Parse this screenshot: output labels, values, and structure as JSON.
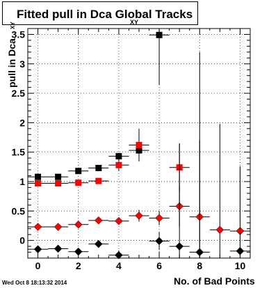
{
  "title": {
    "main": "Fitted pull in Dca    Global Tracks",
    "subscript": "XY"
  },
  "axis": {
    "ylabel": "pull in Dca",
    "ylabel_sub": "XY",
    "xlabel": "No. of Bad Points"
  },
  "timestamp": "Wed Oct  8 18:13:32 2014",
  "chart_data": {
    "type": "scatter",
    "title": "Fitted pull in Dca XY Global Tracks",
    "xlabel": "No. of Bad Points",
    "ylabel": "pull in Dca XY",
    "xlim": [
      -0.5,
      10.5
    ],
    "ylim": [
      -0.3,
      3.6
    ],
    "grid": true,
    "x_ticks": [
      0,
      2,
      4,
      6,
      8,
      10
    ],
    "y_ticks": [
      0,
      0.5,
      1,
      1.5,
      2,
      2.5,
      3,
      3.5
    ],
    "x_ticks_labels": [
      "0",
      "2",
      "4",
      "6",
      "8",
      "10"
    ],
    "y_ticks_labels": [
      "0",
      "0.5",
      "1",
      "1.5",
      "2",
      "2.5",
      "3",
      "3.5"
    ],
    "series": [
      {
        "marker": "square",
        "color": "#000000",
        "points": [
          {
            "x": 0,
            "y": 1.08,
            "yerr": 0.03
          },
          {
            "x": 1,
            "y": 1.08,
            "yerr": 0.03
          },
          {
            "x": 2,
            "y": 1.18,
            "yerr": 0.03
          },
          {
            "x": 3,
            "y": 1.23,
            "yerr": 0.04
          },
          {
            "x": 4,
            "y": 1.43,
            "yerr": 0.06
          },
          {
            "x": 5,
            "y": 1.53,
            "yerr": 0.1
          },
          {
            "x": 6,
            "y": 3.49,
            "yerr": 0.85
          }
        ]
      },
      {
        "marker": "square",
        "color": "#ff0000",
        "points": [
          {
            "x": 0,
            "y": 0.97,
            "yerr": 0.03
          },
          {
            "x": 1,
            "y": 0.97,
            "yerr": 0.03
          },
          {
            "x": 2,
            "y": 0.98,
            "yerr": 0.03
          },
          {
            "x": 3,
            "y": 1.01,
            "yerr": 0.04
          },
          {
            "x": 4,
            "y": 1.28,
            "yerr": 0.1
          },
          {
            "x": 5,
            "y": 1.62,
            "yerr": 0.28
          },
          {
            "x": 7,
            "y": 1.24,
            "yerr": 0.4
          }
        ]
      },
      {
        "marker": "diamond",
        "color": "#ff0000",
        "points": [
          {
            "x": 0,
            "y": 0.23,
            "yerr": 0.02
          },
          {
            "x": 1,
            "y": 0.23,
            "yerr": 0.02
          },
          {
            "x": 2,
            "y": 0.27,
            "yerr": 0.03
          },
          {
            "x": 3,
            "y": 0.34,
            "yerr": 0.04
          },
          {
            "x": 4,
            "y": 0.33,
            "yerr": 0.05
          },
          {
            "x": 5,
            "y": 0.42,
            "yerr": 0.1
          },
          {
            "x": 6,
            "y": 0.38,
            "yerr": 0.12
          },
          {
            "x": 7,
            "y": 0.58,
            "yerr": 0.35
          },
          {
            "x": 8,
            "y": 0.4,
            "yerr": 1.3
          },
          {
            "x": 9,
            "y": 0.18,
            "yerr": 1.8
          },
          {
            "x": 10,
            "y": 0.16,
            "yerr": 1.1
          }
        ]
      },
      {
        "marker": "diamond",
        "color": "#000000",
        "points": [
          {
            "x": 0,
            "y": -0.15,
            "yerr": 0.02
          },
          {
            "x": 1,
            "y": -0.14,
            "yerr": 0.02
          },
          {
            "x": 2,
            "y": -0.19,
            "yerr": 0.03
          },
          {
            "x": 3,
            "y": -0.06,
            "yerr": 0.05
          },
          {
            "x": 4,
            "y": -0.25,
            "yerr": 0.08
          },
          {
            "x": 6,
            "y": -0.01,
            "yerr": 0.15
          },
          {
            "x": 7,
            "y": -0.1,
            "yerr": 1.75
          },
          {
            "x": 8,
            "y": -0.2,
            "yerr": 3.4
          },
          {
            "x": 10,
            "y": -0.18,
            "yerr": 1.4
          }
        ]
      }
    ]
  }
}
